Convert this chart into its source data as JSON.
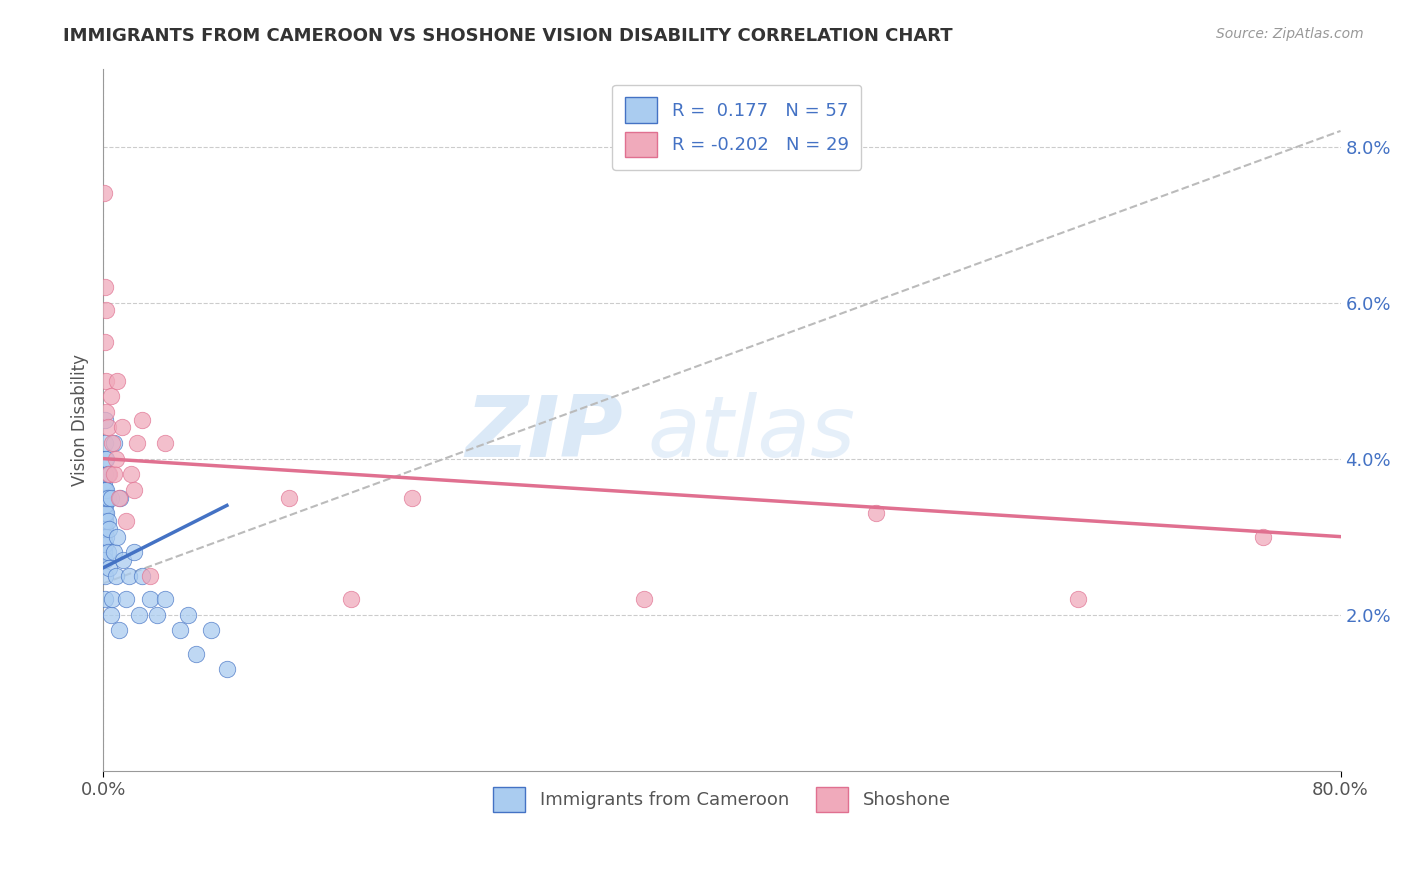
{
  "title": "IMMIGRANTS FROM CAMEROON VS SHOSHONE VISION DISABILITY CORRELATION CHART",
  "source": "Source: ZipAtlas.com",
  "ylabel": "Vision Disability",
  "xmin": 0.0,
  "xmax": 0.8,
  "ymin": 0.0,
  "ymax": 0.09,
  "r_blue": 0.177,
  "n_blue": 57,
  "r_pink": -0.202,
  "n_pink": 29,
  "blue_color": "#aaccf0",
  "pink_color": "#f0aabb",
  "blue_line_color": "#4472c4",
  "pink_line_color": "#e07090",
  "legend_blue_label": "Immigrants from Cameroon",
  "legend_pink_label": "Shoshone",
  "watermark_zip": "ZIP",
  "watermark_atlas": "atlas",
  "dashed_line_x": [
    0.0,
    0.8
  ],
  "dashed_line_y": [
    0.024,
    0.082
  ],
  "blue_line_x": [
    0.0,
    0.08
  ],
  "blue_line_y": [
    0.026,
    0.034
  ],
  "pink_line_x": [
    0.0,
    0.8
  ],
  "pink_line_y": [
    0.04,
    0.03
  ],
  "blue_dots_x": [
    0.0005,
    0.0005,
    0.0005,
    0.0005,
    0.0005,
    0.0005,
    0.0005,
    0.0005,
    0.0005,
    0.0005,
    0.001,
    0.001,
    0.001,
    0.001,
    0.001,
    0.001,
    0.001,
    0.001,
    0.001,
    0.001,
    0.001,
    0.001,
    0.0015,
    0.002,
    0.002,
    0.002,
    0.002,
    0.002,
    0.003,
    0.003,
    0.003,
    0.003,
    0.004,
    0.004,
    0.005,
    0.005,
    0.006,
    0.007,
    0.007,
    0.008,
    0.009,
    0.01,
    0.011,
    0.013,
    0.015,
    0.017,
    0.02,
    0.023,
    0.025,
    0.03,
    0.035,
    0.04,
    0.05,
    0.055,
    0.06,
    0.07,
    0.08
  ],
  "blue_dots_y": [
    0.028,
    0.03,
    0.031,
    0.032,
    0.033,
    0.033,
    0.034,
    0.035,
    0.036,
    0.037,
    0.022,
    0.025,
    0.027,
    0.029,
    0.031,
    0.032,
    0.033,
    0.034,
    0.036,
    0.038,
    0.04,
    0.042,
    0.045,
    0.03,
    0.033,
    0.035,
    0.036,
    0.04,
    0.028,
    0.032,
    0.035,
    0.038,
    0.026,
    0.031,
    0.02,
    0.035,
    0.022,
    0.028,
    0.042,
    0.025,
    0.03,
    0.018,
    0.035,
    0.027,
    0.022,
    0.025,
    0.028,
    0.02,
    0.025,
    0.022,
    0.02,
    0.022,
    0.018,
    0.02,
    0.015,
    0.018,
    0.013
  ],
  "pink_dots_x": [
    0.0005,
    0.001,
    0.001,
    0.002,
    0.002,
    0.002,
    0.003,
    0.004,
    0.005,
    0.006,
    0.007,
    0.008,
    0.009,
    0.01,
    0.012,
    0.015,
    0.018,
    0.02,
    0.022,
    0.025,
    0.03,
    0.04,
    0.12,
    0.16,
    0.2,
    0.35,
    0.5,
    0.63,
    0.75
  ],
  "pink_dots_y": [
    0.074,
    0.062,
    0.055,
    0.05,
    0.046,
    0.059,
    0.044,
    0.038,
    0.048,
    0.042,
    0.038,
    0.04,
    0.05,
    0.035,
    0.044,
    0.032,
    0.038,
    0.036,
    0.042,
    0.045,
    0.025,
    0.042,
    0.035,
    0.022,
    0.035,
    0.022,
    0.033,
    0.022,
    0.03
  ]
}
